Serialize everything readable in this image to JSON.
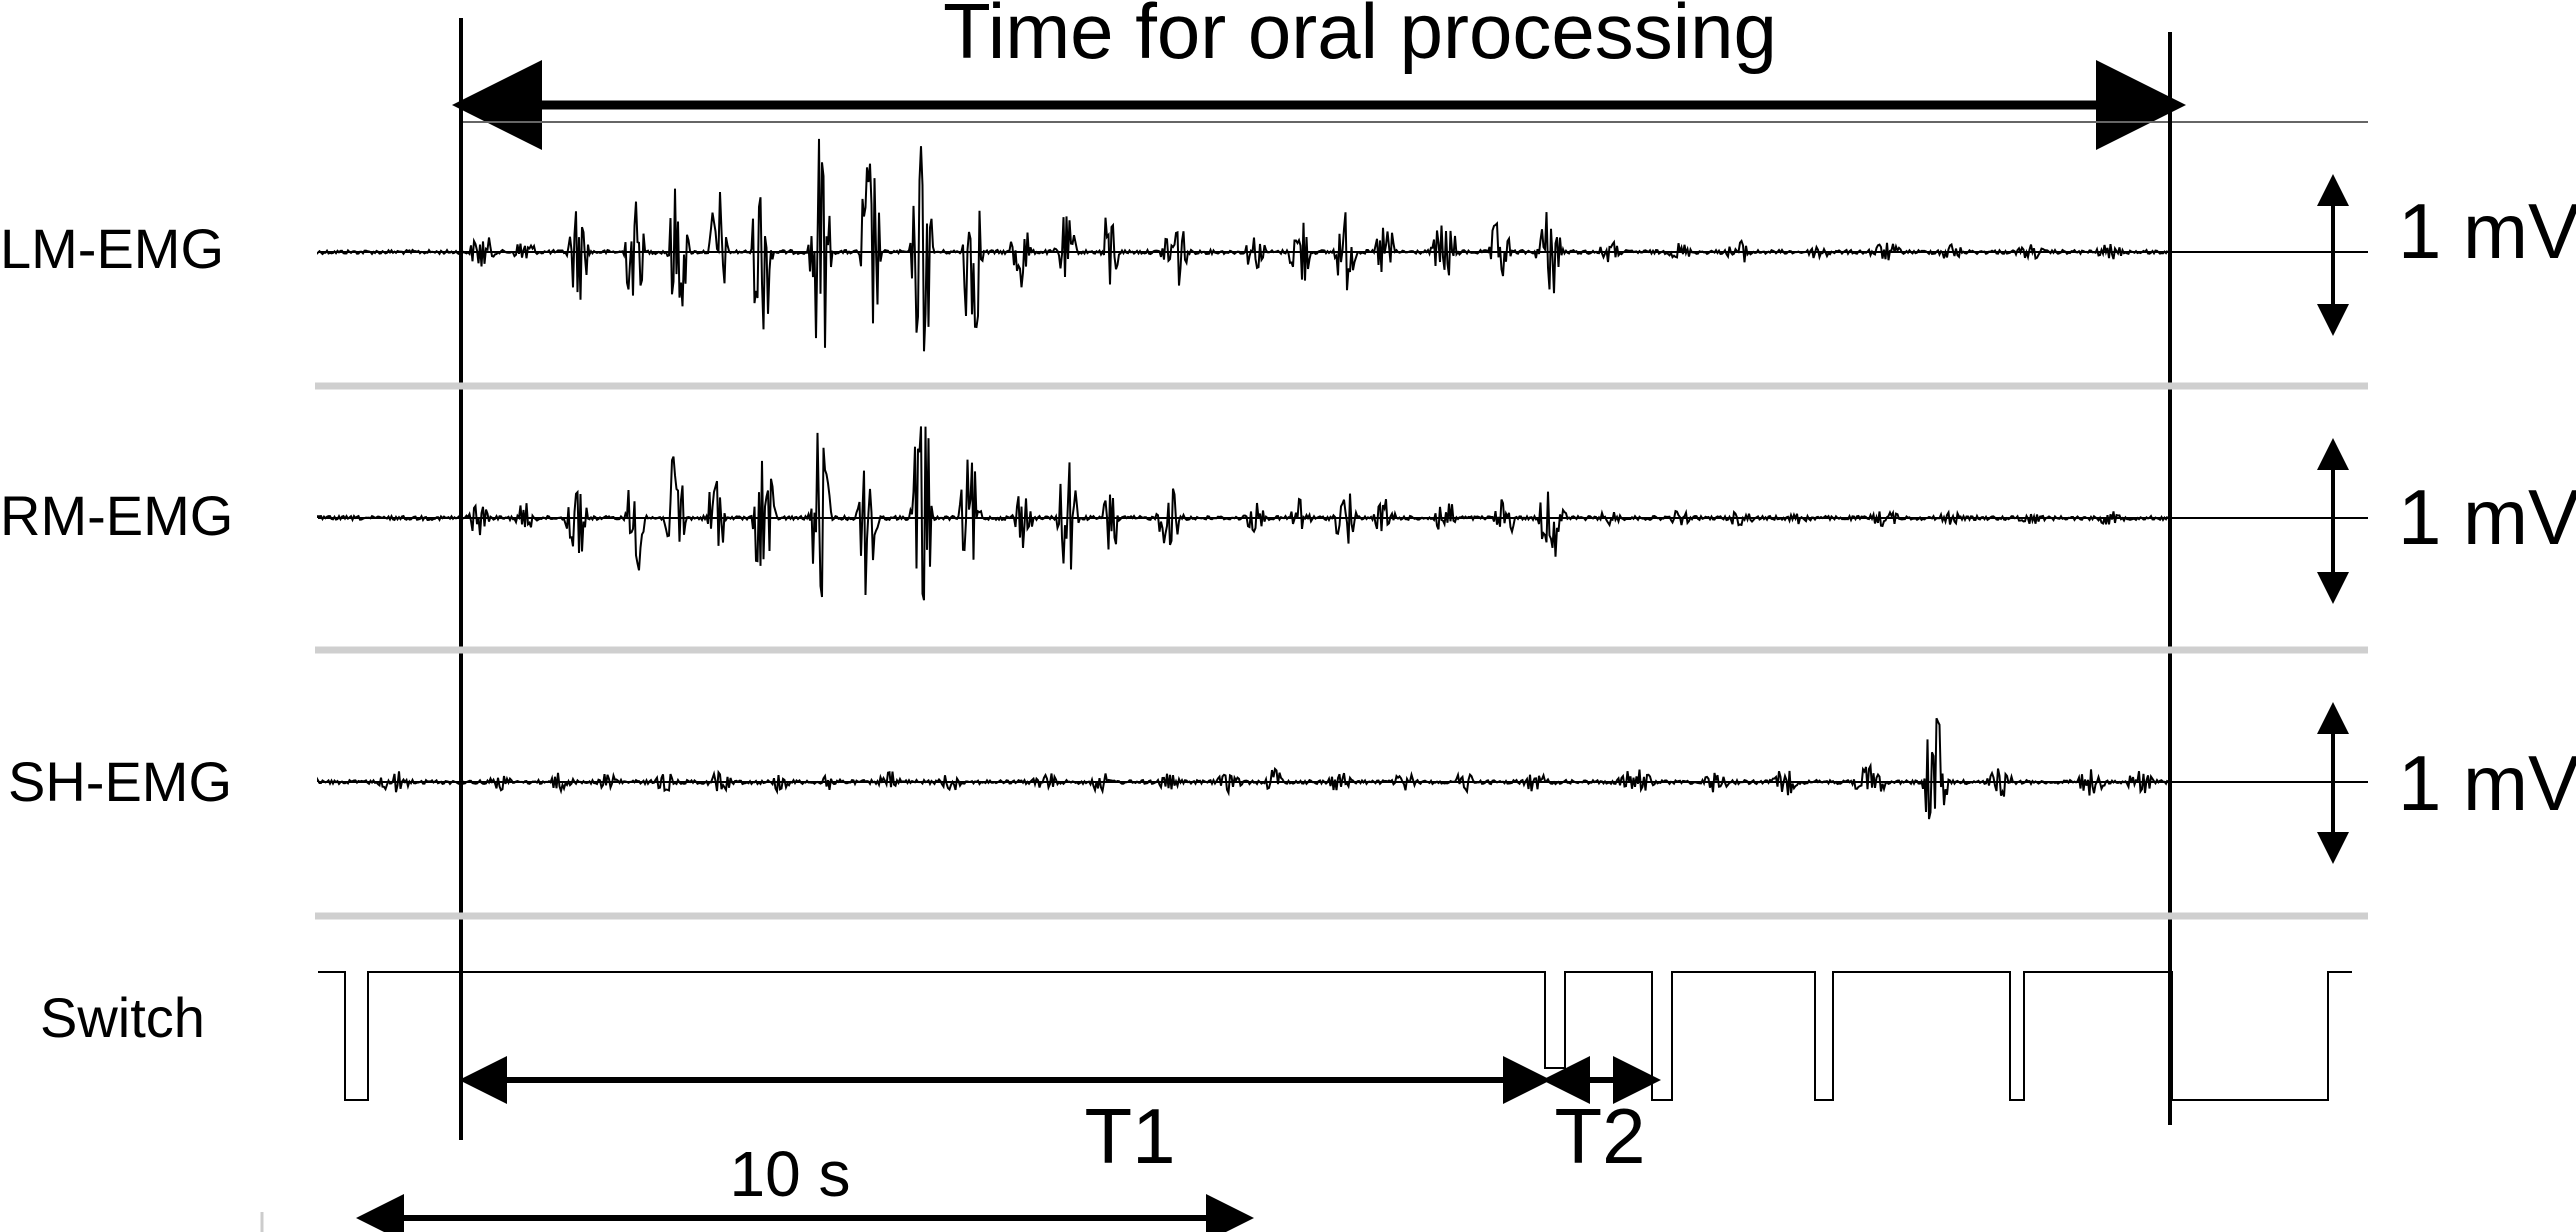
{
  "title": "Time for oral processing",
  "channels": [
    {
      "label": "LM-EMG",
      "scale": "1 mV"
    },
    {
      "label": "RM-EMG",
      "scale": "1 mV"
    },
    {
      "label": "SH-EMG",
      "scale": "1 mV"
    }
  ],
  "switch_label": "Switch",
  "intervals": {
    "t1": "T1",
    "t2": "T2",
    "timescale": "10 s"
  },
  "colors": {
    "trace": "#000000",
    "separator": "#cfcfcf"
  }
}
